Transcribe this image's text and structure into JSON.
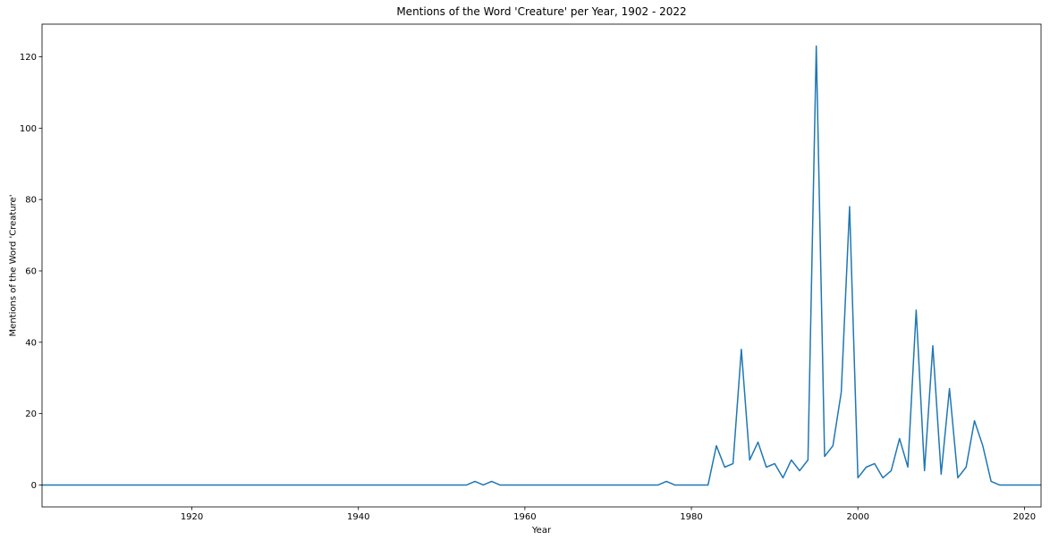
{
  "chart_data": {
    "type": "line",
    "title": "Mentions of the Word 'Creature' per Year, 1902 - 2022",
    "xlabel": "Year",
    "ylabel": "Mentions of the Word 'Creature'",
    "xlim": [
      1902,
      2022
    ],
    "ylim": [
      -6.15,
      129.15
    ],
    "x_ticks": [
      1920,
      1940,
      1960,
      1980,
      2000,
      2020
    ],
    "y_ticks": [
      0,
      20,
      40,
      60,
      80,
      100,
      120
    ],
    "grid": false,
    "legend": "none",
    "line_color": "#1f77b4",
    "x": [
      1902,
      1903,
      1904,
      1905,
      1906,
      1907,
      1908,
      1909,
      1910,
      1911,
      1912,
      1913,
      1914,
      1915,
      1916,
      1917,
      1918,
      1919,
      1920,
      1921,
      1922,
      1923,
      1924,
      1925,
      1926,
      1927,
      1928,
      1929,
      1930,
      1931,
      1932,
      1933,
      1934,
      1935,
      1936,
      1937,
      1938,
      1939,
      1940,
      1941,
      1942,
      1943,
      1944,
      1945,
      1946,
      1947,
      1948,
      1949,
      1950,
      1951,
      1952,
      1953,
      1954,
      1955,
      1956,
      1957,
      1958,
      1959,
      1960,
      1961,
      1962,
      1963,
      1964,
      1965,
      1966,
      1967,
      1968,
      1969,
      1970,
      1971,
      1972,
      1973,
      1974,
      1975,
      1976,
      1977,
      1978,
      1979,
      1980,
      1981,
      1982,
      1983,
      1984,
      1985,
      1986,
      1987,
      1988,
      1989,
      1990,
      1991,
      1992,
      1993,
      1994,
      1995,
      1996,
      1997,
      1998,
      1999,
      2000,
      2001,
      2002,
      2003,
      2004,
      2005,
      2006,
      2007,
      2008,
      2009,
      2010,
      2011,
      2012,
      2013,
      2014,
      2015,
      2016,
      2017,
      2018,
      2019,
      2020,
      2021,
      2022
    ],
    "y": [
      0,
      0,
      0,
      0,
      0,
      0,
      0,
      0,
      0,
      0,
      0,
      0,
      0,
      0,
      0,
      0,
      0,
      0,
      0,
      0,
      0,
      0,
      0,
      0,
      0,
      0,
      0,
      0,
      0,
      0,
      0,
      0,
      0,
      0,
      0,
      0,
      0,
      0,
      0,
      0,
      0,
      0,
      0,
      0,
      0,
      0,
      0,
      0,
      0,
      0,
      0,
      0,
      1,
      0,
      1,
      0,
      0,
      0,
      0,
      0,
      0,
      0,
      0,
      0,
      0,
      0,
      0,
      0,
      0,
      0,
      0,
      0,
      0,
      0,
      0,
      1,
      0,
      0,
      0,
      0,
      0,
      11,
      5,
      6,
      38,
      7,
      12,
      5,
      6,
      2,
      7,
      4,
      7,
      123,
      8,
      11,
      26,
      78,
      2,
      5,
      6,
      2,
      4,
      13,
      5,
      49,
      4,
      39,
      3,
      27,
      2,
      5,
      18,
      11,
      1,
      0,
      0,
      0,
      0,
      0,
      0
    ]
  }
}
